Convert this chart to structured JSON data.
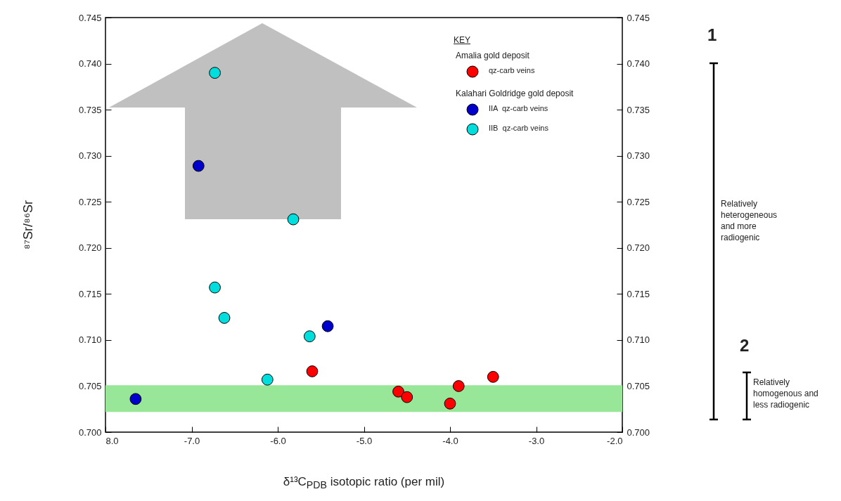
{
  "chart_data": {
    "type": "scatter",
    "xlabel": "δ¹³C$_{PDB}$ isotopic ratio (per mil)",
    "ylabel": "⁸⁷Sr/⁸⁶Sr",
    "legend_title": "KEY",
    "legend": "top right",
    "marker": "circle",
    "xlim": [
      -8,
      -2
    ],
    "xticks": [
      {
        "value": -8,
        "label": "8.0"
      },
      {
        "value": -7,
        "label": "-7.0"
      },
      {
        "value": -6,
        "label": "-6.0"
      },
      {
        "value": -5,
        "label": "-5.0"
      },
      {
        "value": -4,
        "label": "-4.0"
      },
      {
        "value": -3,
        "label": "-3.0"
      },
      {
        "value": -2,
        "label": "-2.0"
      }
    ],
    "ylim": [
      0.7,
      0.745
    ],
    "yticks": [
      {
        "value": 0.7,
        "label": "0.700"
      },
      {
        "value": 0.705,
        "label": "0.705"
      },
      {
        "value": 0.71,
        "label": "0.710"
      },
      {
        "value": 0.715,
        "label": "0.715"
      },
      {
        "value": 0.72,
        "label": "0.720"
      },
      {
        "value": 0.725,
        "label": "0.725"
      },
      {
        "value": 0.73,
        "label": "0.730"
      },
      {
        "value": 0.735,
        "label": "0.735"
      },
      {
        "value": 0.74,
        "label": "0.740"
      },
      {
        "value": 0.745,
        "label": "0.745"
      }
    ],
    "y2lim": [
      0.7,
      0.745
    ],
    "y2ticks": [
      {
        "value": 0.7,
        "label": "0.700"
      },
      {
        "value": 0.705,
        "label": "0.705"
      },
      {
        "value": 0.71,
        "label": "0.710"
      },
      {
        "value": 0.715,
        "label": "0.715"
      },
      {
        "value": 0.72,
        "label": "0.720"
      },
      {
        "value": 0.725,
        "label": "0.725"
      },
      {
        "value": 0.73,
        "label": "0.730"
      },
      {
        "value": 0.735,
        "label": "0.735"
      },
      {
        "value": 0.74,
        "label": "0.740"
      },
      {
        "value": 0.745,
        "label": "0.745"
      }
    ],
    "bands": [
      {
        "axis": "y",
        "from": 0.7022,
        "to": 0.7051,
        "color": "#98e698"
      }
    ],
    "series": [
      {
        "name": "qz-carb veins",
        "color": "#ff0000",
        "x": [
          -5.6,
          -4.6,
          -4.5,
          -4.0,
          -3.9,
          -3.5
        ],
        "values": [
          0.7066,
          0.7044,
          0.7038,
          0.7031,
          0.705,
          0.706
        ]
      },
      {
        "name": "IIA  qz-carb veins",
        "color": "#0000cc",
        "x": [
          -6.92,
          -5.42,
          -7.65
        ],
        "values": [
          0.7289,
          0.7115,
          0.7036
        ]
      },
      {
        "name": "IIB  qz-carb veins",
        "color": "#00dddd",
        "x": [
          -6.73,
          -6.73,
          -6.62,
          -5.82,
          -5.63,
          -6.12
        ],
        "values": [
          0.739,
          0.7157,
          0.7124,
          0.7231,
          0.7104,
          0.7057
        ]
      }
    ],
    "annotations": [
      "Amalia gold deposit",
      "Kalahari Goldridge gold deposit",
      "1",
      "Relatively heterogeneous and more radiogenic",
      "2",
      "Relatively homogenous and less radiogenic"
    ]
  }
}
